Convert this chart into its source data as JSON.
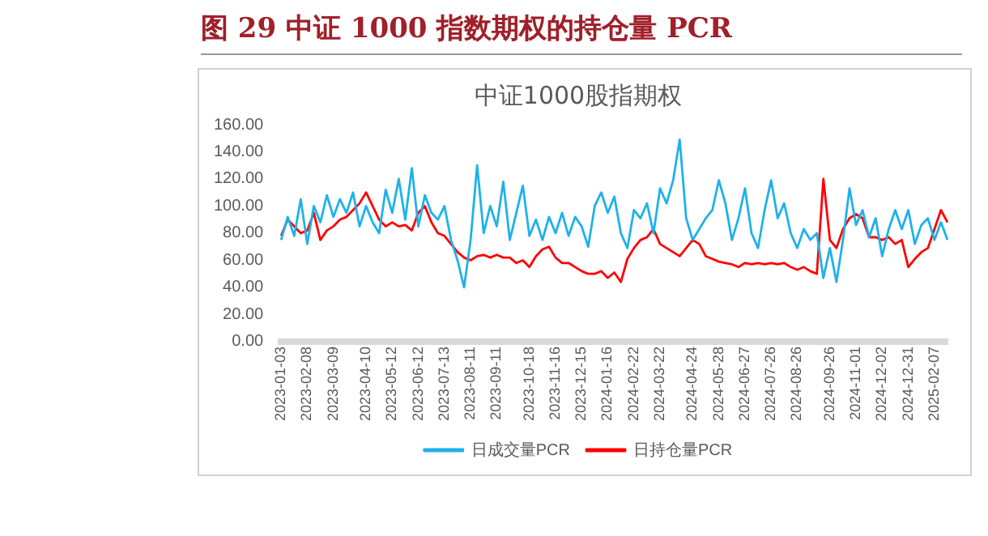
{
  "chart_data": {
    "type": "line",
    "title": "中证1000股指期权",
    "annotations": [
      "图 29 中证 1000 指数期权的持仓量 PCR"
    ],
    "categories": [
      "2023-01-03",
      null,
      null,
      null,
      "2023-02-08",
      null,
      null,
      null,
      "2023-03-09",
      null,
      null,
      null,
      null,
      "2023-04-10",
      null,
      null,
      null,
      "2023-05-12",
      null,
      null,
      null,
      "2023-06-12",
      null,
      null,
      null,
      "2023-07-13",
      null,
      null,
      null,
      "2023-08-11",
      null,
      null,
      null,
      "2023-09-11",
      null,
      null,
      null,
      null,
      "2023-10-18",
      null,
      null,
      null,
      "2023-11-16",
      null,
      null,
      null,
      "2023-12-15",
      null,
      null,
      null,
      "2024-01-16",
      null,
      null,
      null,
      "2024-02-22",
      null,
      null,
      null,
      "2024-03-22",
      null,
      null,
      null,
      null,
      "2024-04-24",
      null,
      null,
      null,
      "2024-05-28",
      null,
      null,
      null,
      "2024-06-27",
      null,
      null,
      null,
      "2024-07-26",
      null,
      null,
      null,
      "2024-08-26",
      null,
      null,
      null,
      null,
      "2024-09-26",
      null,
      null,
      null,
      "2024-11-01",
      null,
      null,
      null,
      "2024-12-02",
      null,
      null,
      null,
      "2024-12-31",
      null,
      null,
      null,
      "2025-02-07",
      null,
      null
    ],
    "series": [
      {
        "name": "日成交量PCR",
        "color": "#1fb1ea",
        "values": [
          75,
          92,
          78,
          105,
          72,
          100,
          88,
          108,
          92,
          105,
          95,
          110,
          85,
          100,
          88,
          80,
          112,
          95,
          120,
          90,
          128,
          85,
          108,
          95,
          90,
          100,
          75,
          60,
          40,
          75,
          130,
          80,
          100,
          85,
          118,
          75,
          95,
          115,
          78,
          90,
          75,
          92,
          80,
          95,
          78,
          92,
          85,
          70,
          100,
          110,
          95,
          107,
          80,
          69,
          97,
          91,
          102,
          80,
          113,
          102,
          119,
          149,
          91,
          75,
          83,
          91,
          97,
          119,
          102,
          75,
          91,
          113,
          80,
          69,
          97,
          119,
          91,
          102,
          80,
          69,
          83,
          75,
          80,
          47,
          69,
          44,
          75,
          113,
          86,
          97,
          77,
          91,
          63,
          83,
          97,
          83,
          97,
          72,
          86,
          91,
          75,
          88,
          75
        ]
      },
      {
        "name": "日持仓量PCR",
        "color": "#ff0000",
        "values": [
          78,
          90,
          85,
          80,
          82,
          95,
          75,
          82,
          85,
          90,
          92,
          97,
          102,
          110,
          100,
          90,
          85,
          88,
          85,
          86,
          82,
          95,
          100,
          88,
          80,
          78,
          72,
          66,
          62,
          60,
          63,
          64,
          62,
          64,
          62,
          62,
          58,
          60,
          55,
          63,
          68,
          70,
          62,
          58,
          58,
          55,
          52,
          50,
          50,
          52,
          47,
          51,
          44,
          61,
          69,
          75,
          77,
          83,
          72,
          69,
          66,
          63,
          69,
          75,
          72,
          63,
          61,
          59,
          58,
          57,
          55,
          58,
          57,
          58,
          57,
          58,
          57,
          58,
          55,
          53,
          55,
          52,
          50,
          120,
          75,
          69,
          83,
          91,
          94,
          91,
          77,
          77,
          75,
          77,
          72,
          75,
          55,
          61,
          66,
          69,
          83,
          97,
          88
        ]
      }
    ],
    "ylim": [
      0,
      160
    ],
    "yticks": [
      {
        "value": 0,
        "label": "0.00"
      },
      {
        "value": 20,
        "label": "20.00"
      },
      {
        "value": 40,
        "label": "40.00"
      },
      {
        "value": 60,
        "label": "60.00"
      },
      {
        "value": 80,
        "label": "80.00"
      },
      {
        "value": 100,
        "label": "100.00"
      },
      {
        "value": 120,
        "label": "120.00"
      },
      {
        "value": 140,
        "label": "140.00"
      },
      {
        "value": 160,
        "label": "160.00"
      }
    ],
    "legend": "bottom",
    "marker": "none",
    "line_style": "solid"
  }
}
